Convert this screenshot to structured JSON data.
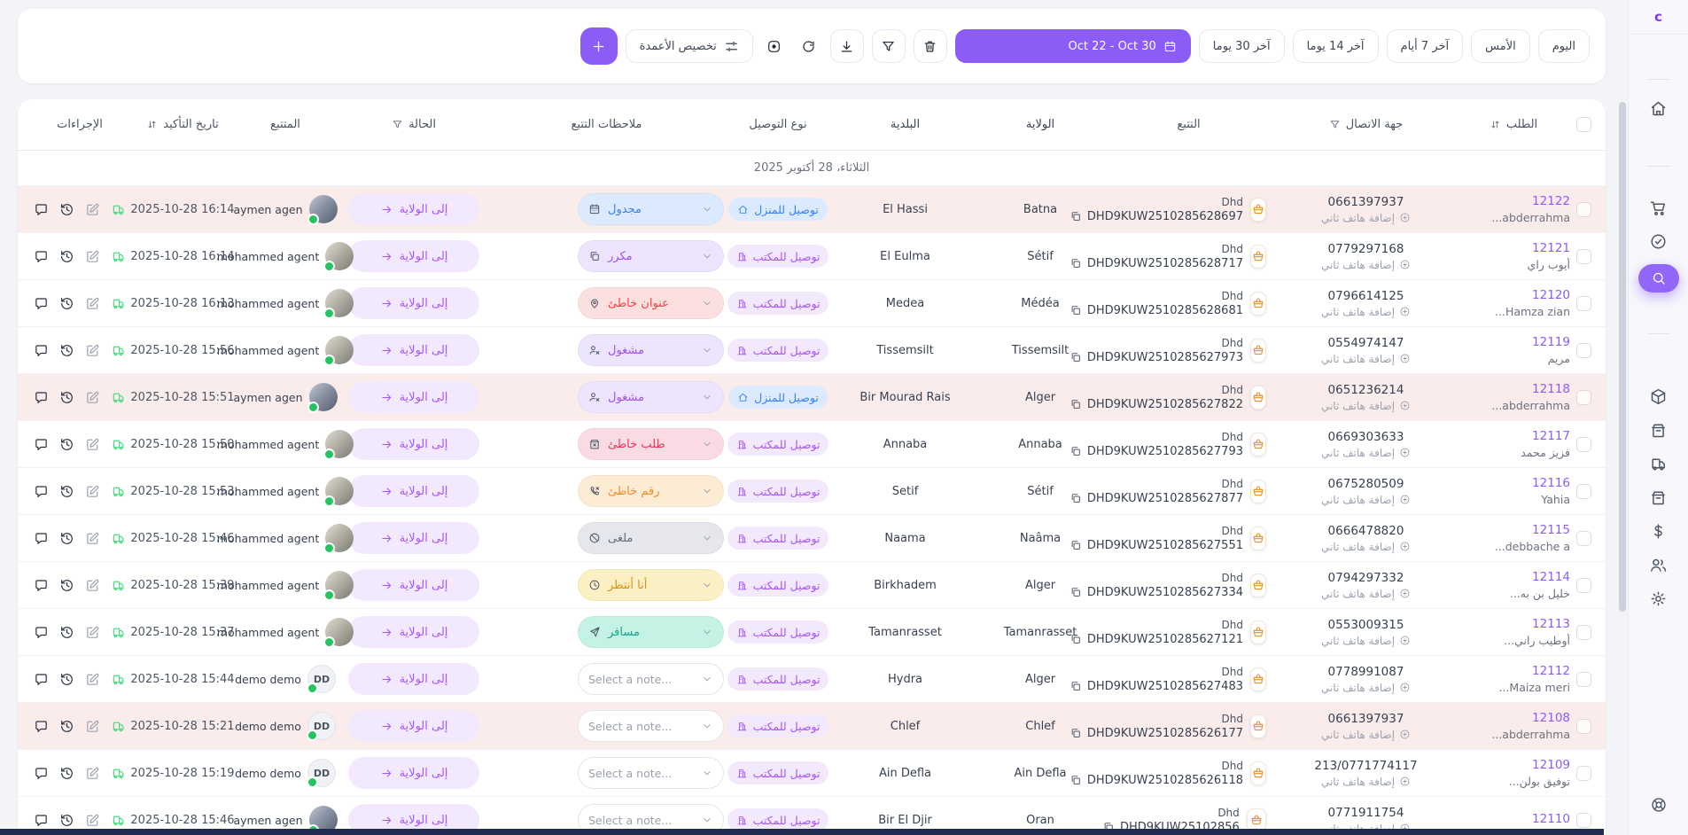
{
  "sidebar": {
    "logo": "c",
    "groups": [
      [
        "home"
      ],
      [
        "cart",
        "check-circle",
        "search"
      ],
      [
        "package",
        "store",
        "truck",
        "store-2",
        "dollar",
        "users",
        "settings"
      ]
    ],
    "active": "search",
    "bottom_icon": "lifebuoy"
  },
  "toolbar": {
    "date_filters": [
      "اليوم",
      "الأمس",
      "آخر 7 أيام",
      "آخر 14 يوما",
      "آخر 30 يوما"
    ],
    "date_range": "Oct 22 - Oct 30",
    "customize_columns": "تخصيص الأعمدة"
  },
  "table": {
    "headers": {
      "order": "الطلب",
      "contact": "جهة الاتصال",
      "tracking": "التتبع",
      "wilaya": "الولاية",
      "municipality": "البلدية",
      "delivery": "نوع التوصيل",
      "notes": "ملاحظات التتبع",
      "status": "الحالة",
      "agent": "المتتبع",
      "date": "تاريخ التأكيد",
      "actions": "الإجراءات"
    },
    "group_date": "الثلاثاء، 28 أكتوبر 2025",
    "status_label": "إلى الولاية",
    "add_phone_label": "إضافة هاتف ثاني",
    "courier_name": "Dhd",
    "delivery_types": {
      "home": "توصيل للمنزل",
      "office": "توصيل للمكتب"
    },
    "notes_catalog": {
      "scheduled": {
        "label": "مجدول",
        "icon": "calendar-check-icon"
      },
      "duplicate": {
        "label": "مكرر",
        "icon": "copy-icon"
      },
      "wrong_address": {
        "label": "عنوان خاطئ",
        "icon": "map-pin-icon"
      },
      "busy": {
        "label": "مشغول",
        "icon": "user-x-icon"
      },
      "wrong_order": {
        "label": "طلب خاطئ",
        "icon": "box-x-icon"
      },
      "wrong_number": {
        "label": "رقم خاطئ",
        "icon": "phone-x-icon"
      },
      "cancelled": {
        "label": "ملغى",
        "icon": "ban-icon"
      },
      "waiting": {
        "label": "أنا أنتظر",
        "icon": "clock-icon"
      },
      "traveling": {
        "label": "مسافر",
        "icon": "plane-icon"
      },
      "none": {
        "label": "Select a note...",
        "icon": null
      }
    },
    "rows": [
      {
        "id": "12122",
        "name": "...abderrahma",
        "phone": "0661397937",
        "tracking": "DHD9KUW2510285628697",
        "wilaya": "Batna",
        "municipality": "El Hassi",
        "delivery": "home",
        "note": "scheduled",
        "time": "16:14 2025-10-28",
        "agent": {
          "name": "aymen agen",
          "avatar": "photo-a"
        },
        "highlight": true
      },
      {
        "id": "12121",
        "name": "أيوب راي",
        "phone": "0779297168",
        "tracking": "DHD9KUW2510285628717",
        "wilaya": "Sétif",
        "municipality": "El Eulma",
        "delivery": "office",
        "note": "duplicate",
        "time": "16:14 2025-10-28",
        "agent": {
          "name": "mohammed agent",
          "avatar": "photo-m"
        },
        "highlight": false
      },
      {
        "id": "12120",
        "name": "...Hamza zian",
        "phone": "0796614125",
        "tracking": "DHD9KUW2510285628681",
        "wilaya": "Médéa",
        "municipality": "Medea",
        "delivery": "office",
        "note": "wrong_address",
        "time": "16:13 2025-10-28",
        "agent": {
          "name": "mohammed agent",
          "avatar": "photo-m"
        },
        "highlight": false
      },
      {
        "id": "12119",
        "name": "مريم",
        "phone": "0554974147",
        "tracking": "DHD9KUW2510285627973",
        "wilaya": "Tissemsilt",
        "municipality": "Tissemsilt",
        "delivery": "office",
        "note": "busy",
        "time": "15:56 2025-10-28",
        "agent": {
          "name": "mohammed agent",
          "avatar": "photo-m"
        },
        "highlight": false
      },
      {
        "id": "12118",
        "name": "...abderrahma",
        "phone": "0651236214",
        "tracking": "DHD9KUW2510285627822",
        "wilaya": "Alger",
        "municipality": "Bir Mourad Rais",
        "delivery": "home",
        "note": "busy",
        "time": "15:51 2025-10-28",
        "agent": {
          "name": "aymen agen",
          "avatar": "photo-a"
        },
        "highlight": true
      },
      {
        "id": "12117",
        "name": "فزيز محمد",
        "phone": "0669303633",
        "tracking": "DHD9KUW2510285627793",
        "wilaya": "Annaba",
        "municipality": "Annaba",
        "delivery": "office",
        "note": "wrong_order",
        "time": "15:50 2025-10-28",
        "agent": {
          "name": "mohammed agent",
          "avatar": "photo-m"
        },
        "highlight": false
      },
      {
        "id": "12116",
        "name": "Yahia",
        "phone": "0675280509",
        "tracking": "DHD9KUW2510285627877",
        "wilaya": "Sétif",
        "municipality": "Setif",
        "delivery": "office",
        "note": "wrong_number",
        "time": "15:53 2025-10-28",
        "agent": {
          "name": "mohammed agent",
          "avatar": "photo-m"
        },
        "highlight": false
      },
      {
        "id": "12115",
        "name": "...debbache a",
        "phone": "0666478820",
        "tracking": "DHD9KUW2510285627551",
        "wilaya": "Naâma",
        "municipality": "Naama",
        "delivery": "office",
        "note": "cancelled",
        "time": "15:46 2025-10-28",
        "agent": {
          "name": "mohammed agent",
          "avatar": "photo-m"
        },
        "highlight": false
      },
      {
        "id": "12114",
        "name": "خليل بن به...",
        "phone": "0794297332",
        "tracking": "DHD9KUW2510285627334",
        "wilaya": "Alger",
        "municipality": "Birkhadem",
        "delivery": "office",
        "note": "waiting",
        "time": "15:39 2025-10-28",
        "agent": {
          "name": "mohammed agent",
          "avatar": "photo-m"
        },
        "highlight": false
      },
      {
        "id": "12113",
        "name": "أوطيب راني...",
        "phone": "0553009315",
        "tracking": "DHD9KUW2510285627121",
        "wilaya": "Tamanrasset",
        "municipality": "Tamanrasset",
        "delivery": "office",
        "note": "traveling",
        "time": "15:37 2025-10-28",
        "agent": {
          "name": "mohammed agent",
          "avatar": "photo-m"
        },
        "highlight": false
      },
      {
        "id": "12112",
        "name": "...Maiza meri",
        "phone": "0778991087",
        "tracking": "DHD9KUW2510285627483",
        "wilaya": "Alger",
        "municipality": "Hydra",
        "delivery": "office",
        "note": "none",
        "time": "15:44 2025-10-28",
        "agent": {
          "name": "demo demo",
          "avatar": "initials",
          "initials": "DD"
        },
        "highlight": false
      },
      {
        "id": "12108",
        "name": "...abderrahma",
        "phone": "0661397937",
        "tracking": "DHD9KUW2510285626177",
        "wilaya": "Chlef",
        "municipality": "Chlef",
        "delivery": "office",
        "note": "none",
        "time": "15:21 2025-10-28",
        "agent": {
          "name": "demo demo",
          "avatar": "initials",
          "initials": "DD"
        },
        "highlight": true
      },
      {
        "id": "12109",
        "name": "توفيق بولن...",
        "phone": "213/0771774117",
        "tracking": "DHD9KUW2510285626118",
        "wilaya": "Ain Defla",
        "municipality": "Ain Defla",
        "delivery": "office",
        "note": "none",
        "time": "15:19 2025-10-28",
        "agent": {
          "name": "demo demo",
          "avatar": "initials",
          "initials": "DD"
        },
        "highlight": false
      },
      {
        "id": "12110",
        "name": "",
        "phone": "0771911754",
        "tracking": "DHD9KUW25102856",
        "wilaya": "Oran",
        "municipality": "Bir El Djir",
        "delivery": "office",
        "note": "none",
        "time": "15:46 2025-10-28",
        "agent": {
          "name": "aymen agen",
          "avatar": "photo-a"
        },
        "highlight": false
      }
    ]
  },
  "colors": {
    "accent": "#8b5cf6",
    "highlight_row": "#fbecec",
    "status_bg": "#f3e9fe",
    "status_text": "#a855f7",
    "online_dot": "#22c55e"
  }
}
